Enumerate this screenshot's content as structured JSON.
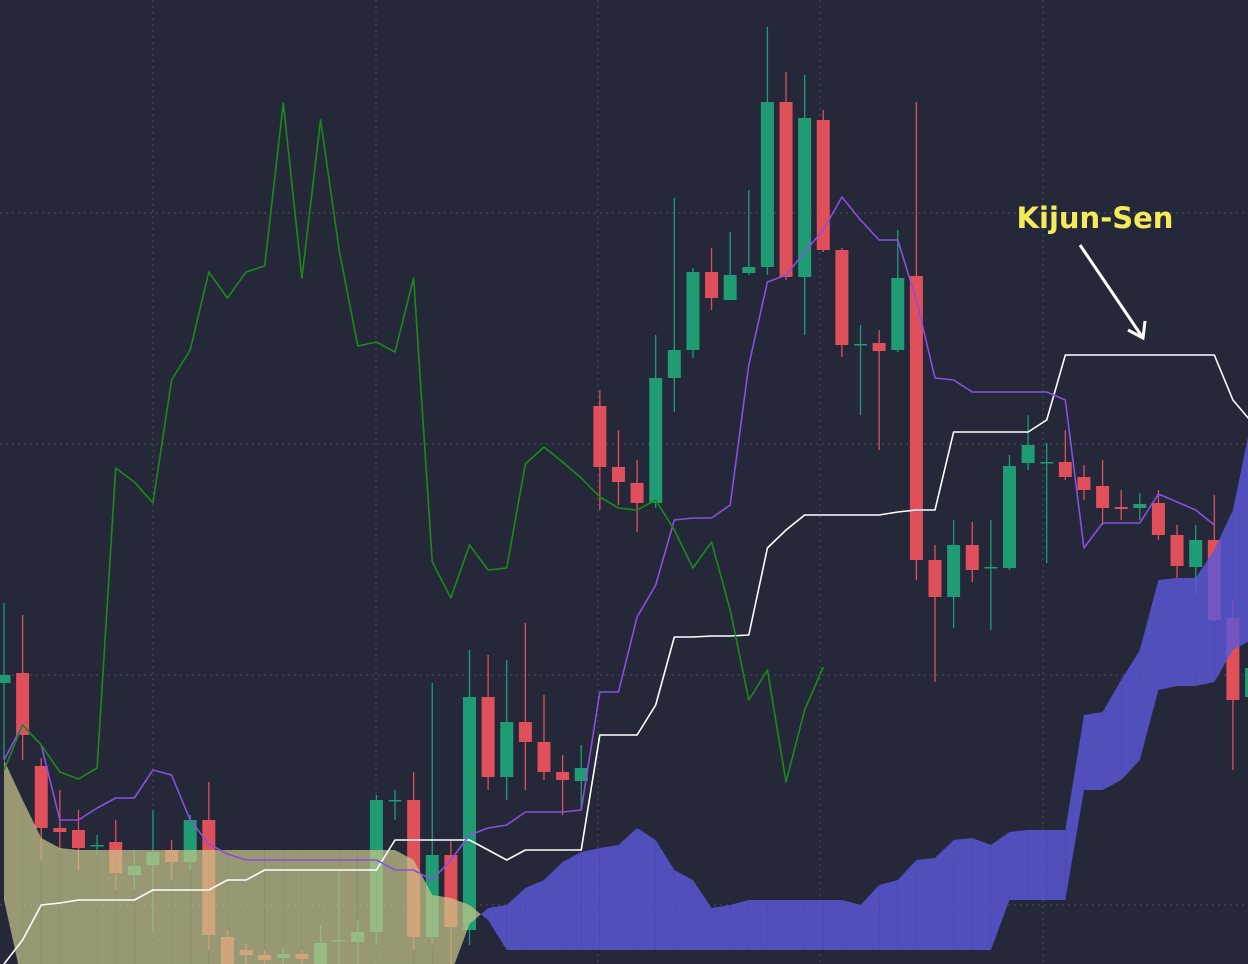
{
  "chart_data": {
    "type": "candlestick",
    "ylim": [
      0,
      964
    ],
    "up_color": "#1f9c74",
    "down_color": "#e0505a",
    "open": [
      281,
      291,
      198,
      136,
      134,
      119,
      122,
      89,
      99,
      114,
      102,
      144,
      27,
      14,
      9,
      6,
      10,
      0,
      24,
      22,
      32,
      164,
      164,
      27,
      109,
      34,
      267,
      187,
      242,
      222,
      192,
      183,
      558,
      497,
      481,
      461,
      586,
      614,
      692,
      664,
      691,
      697,
      862,
      687,
      844,
      714,
      620,
      621,
      614,
      688,
      404,
      367,
      419,
      397,
      396,
      501,
      502,
      502,
      487,
      478,
      457,
      456,
      461,
      429,
      397,
      424,
      346,
      267
    ],
    "high": [
      361,
      349,
      206,
      174,
      154,
      129,
      144,
      114,
      154,
      124,
      149,
      182,
      34,
      20,
      14,
      16,
      14,
      39,
      94,
      44,
      169,
      174,
      192,
      281,
      124,
      314,
      309,
      304,
      341,
      269,
      209,
      219,
      574,
      534,
      504,
      629,
      766,
      696,
      716,
      732,
      774,
      937,
      892,
      889,
      854,
      716,
      639,
      634,
      734,
      862,
      419,
      444,
      442,
      444,
      509,
      549,
      521,
      534,
      499,
      504,
      474,
      471,
      474,
      439,
      439,
      469,
      364,
      354
    ],
    "low": [
      204,
      204,
      104,
      114,
      94,
      109,
      74,
      74,
      34,
      84,
      94,
      14,
      0,
      0,
      0,
      0,
      0,
      0,
      0,
      0,
      19,
      144,
      14,
      19,
      0,
      19,
      174,
      164,
      174,
      184,
      149,
      154,
      454,
      459,
      432,
      456,
      552,
      606,
      654,
      664,
      689,
      689,
      684,
      629,
      712,
      607,
      549,
      514,
      612,
      384,
      282,
      336,
      382,
      334,
      394,
      494,
      401,
      484,
      464,
      439,
      444,
      444,
      424,
      386,
      369,
      342,
      194,
      224
    ],
    "close": [
      289,
      229,
      136,
      132,
      116,
      119,
      91,
      98,
      112,
      102,
      144,
      29,
      0,
      9,
      4,
      10,
      5,
      21,
      24,
      32,
      164,
      164,
      27,
      109,
      37,
      267,
      187,
      242,
      222,
      192,
      184,
      196,
      497,
      482,
      461,
      586,
      614,
      692,
      666,
      689,
      697,
      862,
      687,
      846,
      714,
      619,
      620,
      613,
      686,
      404,
      367,
      419,
      394,
      397,
      498,
      519,
      502,
      487,
      474,
      456,
      455,
      460,
      429,
      398,
      424,
      344,
      264,
      296
    ],
    "lines": [
      {
        "color": "#ffffff",
        "values": [
          0,
          24,
          59,
          61,
          64,
          64,
          64,
          64,
          74,
          74,
          74,
          74,
          84,
          84,
          94,
          94,
          94,
          94,
          94,
          94,
          94,
          124,
          124,
          124,
          124,
          124,
          114,
          104,
          114,
          114,
          114,
          114,
          229,
          229,
          229,
          259,
          327,
          327,
          328,
          328,
          329,
          416,
          434,
          449,
          449,
          449,
          449,
          449,
          452,
          454,
          454,
          532,
          532,
          532,
          532,
          532,
          544,
          609,
          609,
          609,
          609,
          609,
          609,
          609,
          609,
          609,
          564,
          542
        ]
      },
      {
        "color": "#8a4fe0",
        "values": [
          204,
          239,
          219,
          144,
          144,
          156,
          166,
          166,
          194,
          189,
          144,
          120,
          110,
          104,
          104,
          104,
          104,
          104,
          104,
          104,
          104,
          94,
          94,
          84,
          104,
          129,
          136,
          139,
          152,
          152,
          152,
          154,
          272,
          272,
          347,
          379,
          444,
          446,
          446,
          459,
          599,
          682,
          689,
          712,
          734,
          767,
          744,
          724,
          724,
          664,
          586,
          584,
          572,
          572,
          572,
          572,
          572,
          564,
          416,
          441,
          441,
          441,
          470,
          462,
          454,
          439,
          null,
          null
        ]
      },
      {
        "color": "#1a8a1a",
        "values": [
          194,
          239,
          219,
          192,
          185,
          196,
          496,
          482,
          461,
          584,
          614,
          692,
          666,
          692,
          698,
          861,
          686,
          844,
          714,
          618,
          622,
          612,
          686,
          402,
          366,
          419,
          394,
          396,
          500,
          517,
          502,
          486,
          467,
          456,
          454,
          464,
          434,
          396,
          422,
          354,
          264,
          294,
          182,
          254,
          297,
          null,
          null,
          null,
          null,
          null,
          null,
          null,
          null,
          null,
          null,
          null,
          null,
          null,
          null,
          null,
          null,
          null,
          null,
          null,
          null,
          null,
          null,
          null
        ]
      }
    ],
    "span_a": [
      204,
      164,
      126,
      116,
      114,
      114,
      114,
      114,
      114,
      114,
      114,
      114,
      114,
      114,
      114,
      114,
      114,
      114,
      114,
      114,
      114,
      114,
      104,
      69,
      66,
      59,
      44,
      14,
      14,
      14,
      14,
      14,
      14,
      14,
      14,
      14,
      14,
      14,
      14,
      14,
      14,
      14,
      14,
      14,
      14,
      14,
      14,
      14,
      14,
      14,
      14,
      14,
      14,
      14,
      64,
      64,
      64,
      64,
      174,
      174,
      184,
      204,
      274,
      278,
      278,
      282,
      314,
      324
    ],
    "span_b": [
      64,
      -20,
      -40,
      -40,
      -40,
      -40,
      -40,
      -40,
      -40,
      -40,
      -40,
      -40,
      -40,
      -40,
      -40,
      -40,
      -40,
      -40,
      -40,
      -40,
      -40,
      -40,
      -40,
      -40,
      -10,
      40,
      56,
      59,
      76,
      84,
      102,
      112,
      116,
      119,
      136,
      124,
      94,
      84,
      56,
      59,
      64,
      64,
      64,
      64,
      64,
      64,
      59,
      79,
      84,
      104,
      106,
      124,
      126,
      119,
      132,
      134,
      134,
      134,
      249,
      252,
      284,
      314,
      384,
      386,
      386,
      414,
      454,
      544
    ],
    "cloud_up_color": "#c9c98a",
    "cloud_down_color": "#5a58d8",
    "annotation": {
      "text": "Kijun-Sen",
      "color": "#f5ea5a"
    }
  }
}
